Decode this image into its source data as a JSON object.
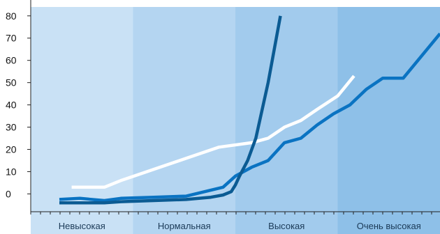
{
  "chart_data": {
    "type": "line",
    "title": "",
    "xlabel": "",
    "ylabel": "",
    "ylim": [
      -8,
      84
    ],
    "yticks": [
      0,
      10,
      20,
      30,
      40,
      50,
      60,
      70,
      80
    ],
    "xlim": [
      0,
      100
    ],
    "grid": false,
    "legend": "none",
    "bands": [
      {
        "label": "Невысокая",
        "from": 0,
        "to": 25,
        "color": "#c9e1f5"
      },
      {
        "label": "Нормальная",
        "from": 25,
        "to": 50,
        "color": "#b4d5f1"
      },
      {
        "label": "Высокая",
        "from": 50,
        "to": 75,
        "color": "#a2cbed"
      },
      {
        "label": "Очень высокая",
        "from": 75,
        "to": 100,
        "color": "#8ec0e8"
      }
    ],
    "series": [
      {
        "color": "#ffffff",
        "points": [
          [
            10,
            3
          ],
          [
            18,
            3
          ],
          [
            22,
            6
          ],
          [
            30,
            11
          ],
          [
            38,
            16
          ],
          [
            46,
            21
          ],
          [
            48,
            21.5
          ],
          [
            54,
            23
          ],
          [
            58,
            25
          ],
          [
            62,
            30
          ],
          [
            66,
            33
          ],
          [
            70,
            38
          ],
          [
            75,
            44
          ],
          [
            79,
            53
          ]
        ]
      },
      {
        "color": "#0a73c2",
        "points": [
          [
            7,
            -2.5
          ],
          [
            12,
            -2
          ],
          [
            18,
            -3
          ],
          [
            22,
            -2
          ],
          [
            30,
            -1.5
          ],
          [
            38,
            -1
          ],
          [
            47,
            3
          ],
          [
            50,
            8
          ],
          [
            54,
            12
          ],
          [
            58,
            15
          ],
          [
            62,
            23
          ],
          [
            66,
            25
          ],
          [
            70,
            31
          ],
          [
            74,
            36
          ],
          [
            78,
            40
          ],
          [
            82,
            47
          ],
          [
            86,
            52
          ],
          [
            91,
            52
          ],
          [
            100,
            72
          ]
        ]
      },
      {
        "color": "#0b5b93",
        "points": [
          [
            7,
            -4
          ],
          [
            12,
            -4
          ],
          [
            18,
            -4
          ],
          [
            22,
            -3.5
          ],
          [
            30,
            -3
          ],
          [
            38,
            -2.5
          ],
          [
            44,
            -1.5
          ],
          [
            47,
            -0.5
          ],
          [
            49,
            1
          ],
          [
            50,
            4
          ],
          [
            51,
            8
          ],
          [
            53,
            15
          ],
          [
            55,
            25
          ],
          [
            58,
            50
          ],
          [
            61,
            80
          ]
        ]
      }
    ]
  }
}
